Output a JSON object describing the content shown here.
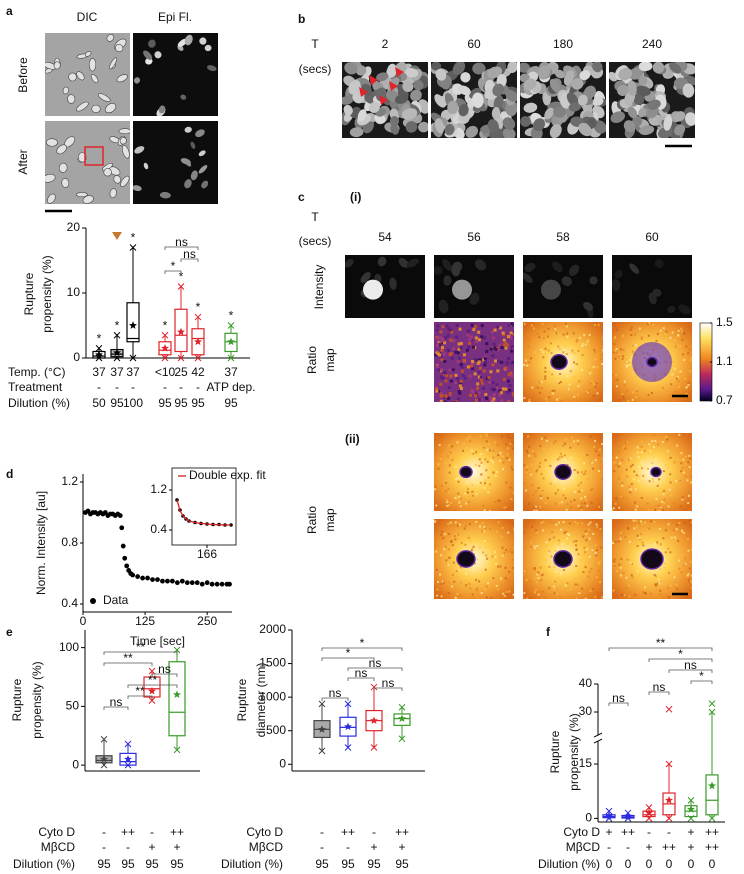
{
  "panel_letters": [
    "a",
    "b",
    "c",
    "d",
    "e",
    "f"
  ],
  "panel_a": {
    "columns": [
      "DIC",
      "Epi Fl."
    ],
    "rows": [
      "Before",
      "After"
    ]
  },
  "panel_b": {
    "time_label": [
      "T",
      "(secs)"
    ],
    "times": [
      2,
      60,
      180,
      240
    ]
  },
  "panel_c": {
    "part_i": "(i)",
    "time_label": [
      "T",
      "(secs)"
    ],
    "times": [
      54,
      56,
      58,
      60
    ],
    "intensity_label": "Intensity",
    "ratio_label": [
      "Ratio",
      "map"
    ],
    "colorbar": {
      "range": [
        0.7,
        1.5
      ],
      "ticks": [
        1.5,
        1.1,
        0.7
      ]
    },
    "part_ii": "(ii)",
    "ratio_label_ii": [
      "Ratio",
      "map"
    ]
  },
  "chart_data": [
    {
      "type": "box",
      "ylabel": [
        "Rupture",
        "propensity (%)"
      ],
      "ylim": [
        0,
        20
      ],
      "yticks": [
        0,
        10,
        20
      ],
      "boxes": [
        {
          "color": "#000000",
          "fill": "none",
          "min": 0,
          "q1": 0,
          "median": 0.3,
          "q3": 1,
          "max": 1.5,
          "mean": 0.5,
          "mark": "*"
        },
        {
          "color": "#000000",
          "fill": "#bbbbbb",
          "min": 0,
          "q1": 0.2,
          "median": 0.6,
          "q3": 1.3,
          "max": 3.5,
          "mean": 0.8,
          "mark": "*",
          "flag_color": "#c8782e"
        },
        {
          "color": "#000000",
          "fill": "none",
          "min": 0,
          "q1": 2.5,
          "median": 3,
          "q3": 8.5,
          "max": 17,
          "mean": 5,
          "mark": "*"
        },
        {
          "color": "#e0242c",
          "fill": "none",
          "min": 0,
          "q1": 0.5,
          "median": 1.2,
          "q3": 2.5,
          "max": 3.5,
          "mean": 1.5,
          "mark": "*"
        },
        {
          "color": "#e0242c",
          "fill": "none",
          "min": 0,
          "q1": 1,
          "median": 3.5,
          "q3": 7.5,
          "max": 11,
          "mean": 4,
          "mark": "*"
        },
        {
          "color": "#e0242c",
          "fill": "none",
          "min": 0,
          "q1": 0.5,
          "median": 3,
          "q3": 4.5,
          "max": 6.3,
          "mean": 2.5,
          "mark": "*"
        },
        {
          "color": "#3a9a2a",
          "fill": "none",
          "min": 0,
          "q1": 1,
          "median": 2.5,
          "q3": 3.8,
          "max": 5,
          "mean": 2.5,
          "mark": "*"
        }
      ],
      "rows": [
        {
          "label": "Temp. (°C)",
          "values": [
            37,
            37,
            37,
            "<10",
            25,
            42,
            37
          ]
        },
        {
          "label": "Treatment",
          "values": [
            "-",
            "-",
            "-",
            "-",
            "-",
            "-",
            "ATP dep."
          ]
        },
        {
          "label": "Dilution (%)",
          "values": [
            50,
            95,
            100,
            95,
            95,
            95,
            95
          ]
        }
      ],
      "brackets": [
        {
          "from": 3,
          "to": 5,
          "label": "ns"
        },
        {
          "from": 4,
          "to": 5,
          "label": "ns"
        },
        {
          "from": 3,
          "to": 4,
          "label": "*"
        }
      ]
    },
    {
      "type": "scatter",
      "ylabel": "Norm. Intensity [au]",
      "xlabel": "Time [sec]",
      "xlim": [
        0,
        300
      ],
      "xticks": [
        0,
        125,
        250
      ],
      "ylim": [
        0.4,
        1.2
      ],
      "yticks": [
        0.4,
        0.8,
        1.2
      ],
      "series": [
        {
          "name": "Data",
          "color": "#000000",
          "x": [
            5,
            10,
            15,
            20,
            25,
            30,
            35,
            40,
            45,
            50,
            55,
            60,
            65,
            70,
            75,
            78,
            81,
            84,
            88,
            92,
            96,
            100,
            110,
            120,
            130,
            140,
            150,
            160,
            170,
            180,
            190,
            200,
            210,
            220,
            230,
            240,
            250,
            260,
            270,
            280,
            290,
            295
          ],
          "values": [
            1.0,
            1.01,
            0.99,
            1.0,
            1.0,
            0.99,
            1.0,
            0.99,
            1.0,
            0.98,
            0.99,
            0.99,
            0.98,
            0.99,
            0.98,
            0.9,
            0.78,
            0.7,
            0.65,
            0.62,
            0.6,
            0.59,
            0.58,
            0.57,
            0.57,
            0.56,
            0.56,
            0.55,
            0.55,
            0.55,
            0.54,
            0.55,
            0.54,
            0.54,
            0.54,
            0.53,
            0.54,
            0.53,
            0.53,
            0.53,
            0.53,
            0.53
          ]
        }
      ],
      "inset": {
        "xlim": [
          155,
          175
        ],
        "xticks": [
          166
        ],
        "ylim": [
          0.4,
          1.2
        ],
        "yticks": [
          0.4,
          1.2
        ],
        "series": [
          {
            "color": "#000000",
            "x": [
              156,
              157,
              158,
              159,
              160,
              162,
              164,
              166,
              168,
              170,
              172,
              174
            ],
            "values": [
              1.0,
              0.8,
              0.68,
              0.62,
              0.58,
              0.55,
              0.53,
              0.52,
              0.51,
              0.51,
              0.5,
              0.5
            ]
          },
          {
            "name": "Double exp. fit",
            "color": "#d62020",
            "x": [
              156,
              157,
              158,
              159,
              160,
              162,
              164,
              166,
              168,
              170,
              172,
              174
            ],
            "values": [
              1.0,
              0.79,
              0.68,
              0.62,
              0.58,
              0.55,
              0.53,
              0.52,
              0.51,
              0.505,
              0.5,
              0.5
            ]
          }
        ]
      }
    },
    {
      "type": "box",
      "ylabel": [
        "Rupture",
        "propensity (%)"
      ],
      "ylim": [
        -5,
        115
      ],
      "yticks": [
        0,
        50,
        100
      ],
      "boxes": [
        {
          "color": "#444444",
          "fill": "#aaaaaa",
          "min": 0,
          "q1": 2,
          "median": 4,
          "q3": 8,
          "max": 22,
          "mean": 5
        },
        {
          "color": "#2a2ae0",
          "fill": "none",
          "min": 0,
          "q1": 0,
          "median": 3,
          "q3": 10,
          "max": 18,
          "mean": 5
        },
        {
          "color": "#e0242c",
          "fill": "none",
          "min": 55,
          "q1": 58,
          "median": 65,
          "q3": 75,
          "max": 80,
          "mean": 63
        },
        {
          "color": "#3a9a2a",
          "fill": "none",
          "min": 13,
          "q1": 25,
          "median": 45,
          "q3": 88,
          "max": 98,
          "mean": 60
        }
      ],
      "rows": [
        {
          "label": "Cyto D",
          "values": [
            "-",
            "++",
            "-",
            "++"
          ]
        },
        {
          "label": "MβCD",
          "values": [
            "-",
            "-",
            "+",
            "+"
          ]
        },
        {
          "label": "Dilution (%)",
          "values": [
            95,
            95,
            95,
            95
          ]
        }
      ],
      "brackets": [
        {
          "from": 0,
          "to": 3,
          "label": "**"
        },
        {
          "from": 0,
          "to": 2,
          "label": "**"
        },
        {
          "from": 2,
          "to": 3,
          "label": "ns"
        },
        {
          "from": 1,
          "to": 3,
          "label": "**"
        },
        {
          "from": 1,
          "to": 2,
          "label": "**"
        },
        {
          "from": 0,
          "to": 1,
          "label": "ns"
        }
      ]
    },
    {
      "type": "box",
      "ylabel": [
        "Rupture",
        "diameter (nm)"
      ],
      "ylim": [
        -100,
        2000
      ],
      "yticks": [
        0,
        500,
        1000,
        1500,
        2000
      ],
      "boxes": [
        {
          "color": "#444444",
          "fill": "#aaaaaa",
          "min": 200,
          "q1": 400,
          "median": 520,
          "q3": 650,
          "max": 900,
          "mean": 520
        },
        {
          "color": "#2a2ae0",
          "fill": "none",
          "min": 250,
          "q1": 420,
          "median": 550,
          "q3": 700,
          "max": 900,
          "mean": 560
        },
        {
          "color": "#e0242c",
          "fill": "none",
          "min": 250,
          "q1": 500,
          "median": 650,
          "q3": 800,
          "max": 1150,
          "mean": 650
        },
        {
          "color": "#3a9a2a",
          "fill": "none",
          "min": 380,
          "q1": 580,
          "median": 680,
          "q3": 750,
          "max": 850,
          "mean": 680
        }
      ],
      "rows": [
        {
          "label": "Cyto D",
          "values": [
            "-",
            "++",
            "-",
            "++"
          ]
        },
        {
          "label": "MβCD",
          "values": [
            "-",
            "-",
            "+",
            "+"
          ]
        },
        {
          "label": "Dilution (%)",
          "values": [
            95,
            95,
            95,
            95
          ]
        }
      ],
      "brackets": [
        {
          "from": 0,
          "to": 3,
          "label": "*"
        },
        {
          "from": 0,
          "to": 2,
          "label": "*"
        },
        {
          "from": 1,
          "to": 3,
          "label": "ns"
        },
        {
          "from": 1,
          "to": 2,
          "label": "ns"
        },
        {
          "from": 2,
          "to": 3,
          "label": "ns"
        },
        {
          "from": 0,
          "to": 1,
          "label": "ns"
        }
      ]
    },
    {
      "type": "box",
      "ylabel": [
        "Rupture",
        "propensity (%)"
      ],
      "ylim": [
        -1,
        40
      ],
      "yticks": [
        0,
        15,
        30,
        40
      ],
      "axis_break": [
        15,
        30
      ],
      "boxes": [
        {
          "color": "#2a2ae0",
          "fill": "none",
          "min": 0,
          "q1": 0.2,
          "median": 0.5,
          "q3": 1,
          "max": 2,
          "mean": 0.7
        },
        {
          "color": "#2a2ae0",
          "fill": "none",
          "min": 0,
          "q1": 0.1,
          "median": 0.4,
          "q3": 0.8,
          "max": 1.5,
          "mean": 0.6
        },
        {
          "color": "#e0242c",
          "fill": "none",
          "min": 0,
          "q1": 0.5,
          "median": 1,
          "q3": 2,
          "max": 3,
          "mean": 1.5
        },
        {
          "color": "#e0242c",
          "fill": "none",
          "min": 0,
          "q1": 1,
          "median": 4,
          "q3": 7,
          "max": 15,
          "mean": 5,
          "outliers": [
            31
          ]
        },
        {
          "color": "#3a9a2a",
          "fill": "none",
          "min": 0,
          "q1": 0.5,
          "median": 2,
          "q3": 3.5,
          "max": 5,
          "mean": 2.5
        },
        {
          "color": "#3a9a2a",
          "fill": "none",
          "min": 0,
          "q1": 1,
          "median": 5,
          "q3": 12,
          "max": 30,
          "mean": 9,
          "outliers": [
            33
          ]
        }
      ],
      "rows": [
        {
          "label": "Cyto D",
          "values": [
            "+",
            "++",
            "-",
            "-",
            "+",
            "++"
          ]
        },
        {
          "label": "MβCD",
          "values": [
            "-",
            "-",
            "+",
            "++",
            "+",
            "++"
          ]
        },
        {
          "label": "Dilution (%)",
          "values": [
            0,
            0,
            0,
            0,
            0,
            0
          ]
        }
      ],
      "brackets": [
        {
          "from": 0,
          "to": 5,
          "label": "**"
        },
        {
          "from": 2,
          "to": 5,
          "label": "*"
        },
        {
          "from": 3,
          "to": 5,
          "label": "ns"
        },
        {
          "from": 4,
          "to": 5,
          "label": "*"
        },
        {
          "from": 2,
          "to": 3,
          "label": "ns"
        },
        {
          "from": 0,
          "to": 1,
          "label": "ns"
        }
      ]
    }
  ]
}
